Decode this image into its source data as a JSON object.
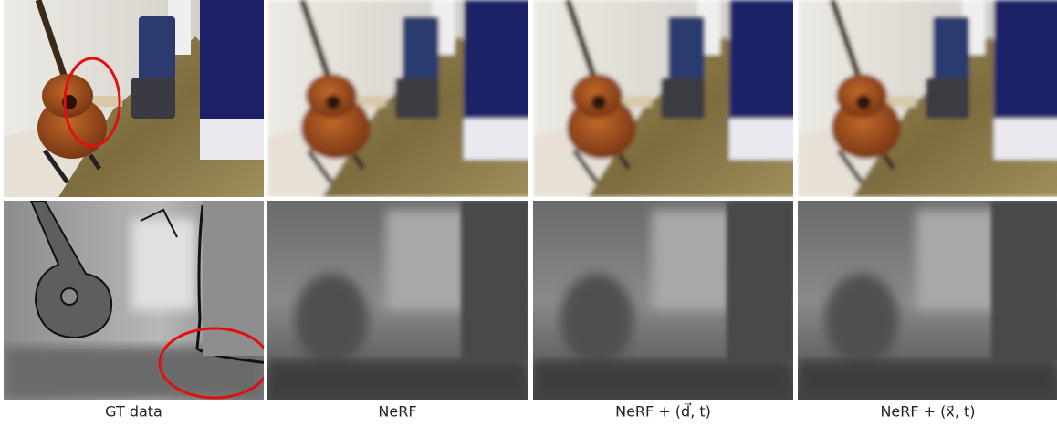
{
  "captions": [
    "GT data",
    "NeRF",
    "NeRF + (d⃗, t)",
    "NeRF + (x⃗, t)"
  ]
}
